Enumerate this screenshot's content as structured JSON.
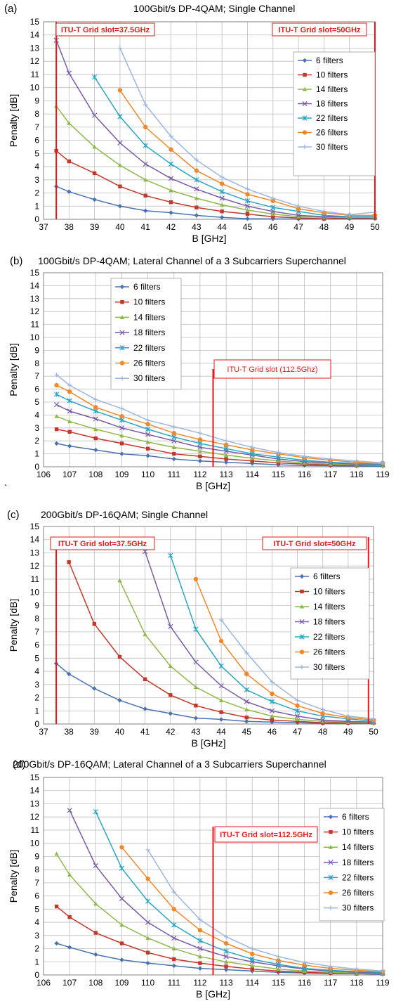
{
  "figure": {
    "stray_mark": "."
  },
  "styles": {
    "series_colors": [
      "#4a72b0",
      "#c0392b",
      "#8fb84a",
      "#7a5ba8",
      "#2aa6c4",
      "#f0882a",
      "#9bb6e0"
    ],
    "markers": [
      "diamond",
      "square",
      "triangle",
      "x",
      "star",
      "circle",
      "plus"
    ],
    "annotation_color": "#e31a1c"
  },
  "chart_data": [
    {
      "panel": "(a)",
      "title": "100Gbit/s DP-4QAM;  Single Channel",
      "type": "line",
      "xlabel": "B [GHz]",
      "ylabel": "Penalty [dB]",
      "xlim": [
        37,
        50
      ],
      "ylim": [
        0,
        15
      ],
      "xticks": [
        37,
        38,
        39,
        40,
        41,
        42,
        43,
        44,
        45,
        46,
        47,
        48,
        49,
        50
      ],
      "yticks": [
        0,
        1,
        2,
        3,
        4,
        5,
        6,
        7,
        8,
        9,
        10,
        11,
        12,
        13,
        14,
        15
      ],
      "grid": true,
      "legend_position": "top-right",
      "series": [
        {
          "name": "6 filters",
          "x": [
            37.5,
            38,
            39,
            40,
            41,
            42,
            43,
            44,
            45,
            46,
            47,
            48,
            49,
            50
          ],
          "y": [
            2.5,
            2.1,
            1.5,
            1.0,
            0.65,
            0.5,
            0.3,
            0.15,
            0.05,
            0.03,
            0.02,
            0.02,
            0.05,
            0.05
          ]
        },
        {
          "name": "10 filters",
          "x": [
            37.5,
            38,
            39,
            40,
            41,
            42,
            43,
            44,
            45,
            46,
            47,
            48,
            49,
            50
          ],
          "y": [
            5.2,
            4.4,
            3.5,
            2.5,
            1.8,
            1.3,
            0.9,
            0.6,
            0.4,
            0.2,
            0.1,
            0.05,
            0.1,
            0.1
          ]
        },
        {
          "name": "14 filters",
          "x": [
            37.5,
            38,
            39,
            40,
            41,
            42,
            43,
            44,
            45,
            46,
            47,
            48,
            49,
            50
          ],
          "y": [
            8.6,
            7.3,
            5.5,
            4.1,
            3.0,
            2.2,
            1.6,
            1.1,
            0.7,
            0.4,
            0.2,
            0.15,
            0.15,
            0.15
          ]
        },
        {
          "name": "18 filters",
          "x": [
            37.5,
            38,
            39,
            40,
            41,
            42,
            43,
            44,
            45,
            46,
            47,
            48,
            49,
            50
          ],
          "y": [
            13.6,
            11.1,
            7.9,
            5.8,
            4.2,
            3.1,
            2.3,
            1.6,
            1.0,
            0.6,
            0.3,
            0.2,
            0.2,
            0.2
          ]
        },
        {
          "name": "22 filters",
          "x": [
            39,
            40,
            41,
            42,
            43,
            44,
            45,
            46,
            47,
            48,
            49,
            50
          ],
          "y": [
            10.8,
            7.8,
            5.6,
            4.2,
            3.0,
            2.1,
            1.4,
            0.9,
            0.6,
            0.3,
            0.2,
            0.2
          ]
        },
        {
          "name": "26 filters",
          "x": [
            40,
            41,
            42,
            43,
            44,
            45,
            46,
            47,
            48,
            49,
            50
          ],
          "y": [
            9.8,
            7.0,
            5.3,
            3.7,
            2.7,
            1.9,
            1.4,
            0.8,
            0.5,
            0.3,
            0.3
          ]
        },
        {
          "name": "30 filters",
          "x": [
            40,
            41,
            42,
            43,
            44,
            45,
            46,
            47,
            48,
            49,
            50
          ],
          "y": [
            13.0,
            8.7,
            6.3,
            4.5,
            3.2,
            2.3,
            1.6,
            1.0,
            0.6,
            0.35,
            0.55
          ]
        }
      ],
      "markers": [
        {
          "label": "ITU-T Grid slot=37.5GHz",
          "x": 37.5
        },
        {
          "label": "ITU-T Grid slot=50GHz",
          "x": 50
        }
      ]
    },
    {
      "panel": "(b)",
      "title": "100Gbit/s DP-4QAM; Lateral Channel of a 3 Subcarriers  Superchannel",
      "type": "line",
      "xlabel": "B [GHz]",
      "ylabel": "Penalty [dB]",
      "xlim": [
        106,
        119
      ],
      "ylim": [
        0,
        15
      ],
      "xticks": [
        106,
        107,
        108,
        109,
        110,
        111,
        112,
        113,
        114,
        115,
        116,
        117,
        118,
        119
      ],
      "yticks": [
        0,
        1,
        2,
        3,
        4,
        5,
        6,
        7,
        8,
        9,
        10,
        11,
        12,
        13,
        14,
        15
      ],
      "grid": true,
      "legend_position": "top-left",
      "series": [
        {
          "name": "6 filters",
          "x": [
            106.5,
            107,
            108,
            109,
            110,
            111,
            112,
            113,
            114,
            115,
            116,
            117,
            118,
            119
          ],
          "y": [
            1.8,
            1.6,
            1.3,
            1.0,
            0.85,
            0.6,
            0.45,
            0.35,
            0.25,
            0.15,
            0.1,
            0.08,
            0.05,
            0.05
          ]
        },
        {
          "name": "10 filters",
          "x": [
            106.5,
            107,
            108,
            109,
            110,
            111,
            112,
            113,
            114,
            115,
            116,
            117,
            118,
            119
          ],
          "y": [
            2.9,
            2.7,
            2.2,
            1.8,
            1.4,
            1.0,
            0.8,
            0.6,
            0.45,
            0.3,
            0.2,
            0.15,
            0.1,
            0.1
          ]
        },
        {
          "name": "14 filters",
          "x": [
            106.5,
            107,
            108,
            109,
            110,
            111,
            112,
            113,
            114,
            115,
            116,
            117,
            118,
            119
          ],
          "y": [
            3.9,
            3.5,
            2.9,
            2.4,
            1.9,
            1.5,
            1.2,
            0.9,
            0.65,
            0.45,
            0.3,
            0.2,
            0.15,
            0.1
          ]
        },
        {
          "name": "18 filters",
          "x": [
            106.5,
            107,
            108,
            109,
            110,
            111,
            112,
            113,
            114,
            115,
            116,
            117,
            118,
            119
          ],
          "y": [
            4.8,
            4.3,
            3.7,
            3.0,
            2.5,
            2.0,
            1.5,
            1.2,
            0.9,
            0.6,
            0.4,
            0.3,
            0.2,
            0.15
          ]
        },
        {
          "name": "22 filters",
          "x": [
            106.5,
            107,
            108,
            109,
            110,
            111,
            112,
            113,
            114,
            115,
            116,
            117,
            118,
            119
          ],
          "y": [
            5.6,
            5.1,
            4.3,
            3.6,
            2.9,
            2.3,
            1.8,
            1.4,
            1.0,
            0.75,
            0.5,
            0.35,
            0.25,
            0.2
          ]
        },
        {
          "name": "26 filters",
          "x": [
            106.5,
            107,
            108,
            109,
            110,
            111,
            112,
            113,
            114,
            115,
            116,
            117,
            118,
            119
          ],
          "y": [
            6.3,
            5.8,
            4.6,
            3.9,
            3.3,
            2.6,
            2.1,
            1.7,
            1.3,
            1.0,
            0.7,
            0.5,
            0.35,
            0.3
          ]
        },
        {
          "name": "30 filters",
          "x": [
            106.5,
            107,
            108,
            109,
            110,
            111,
            112,
            113,
            114,
            115,
            116,
            117,
            118,
            119
          ],
          "y": [
            7.1,
            6.3,
            5.2,
            4.5,
            3.6,
            3.1,
            2.6,
            2.0,
            1.5,
            1.1,
            0.8,
            0.6,
            0.45,
            0.3
          ]
        }
      ],
      "markers": [
        {
          "label": "ITU-T Grid slot (112.5Ghz)",
          "x": 112.5
        }
      ]
    },
    {
      "panel": "(c)",
      "title": "200Gbit/s DP-16QAM; Single Channel",
      "type": "line",
      "xlabel": "B [GHz]",
      "ylabel": "Penalty [dB]",
      "xlim": [
        37,
        50
      ],
      "ylim": [
        0,
        15
      ],
      "xticks": [
        37,
        38,
        39,
        40,
        41,
        42,
        43,
        44,
        45,
        46,
        47,
        48,
        49,
        50
      ],
      "yticks": [
        0,
        1,
        2,
        3,
        4,
        5,
        6,
        7,
        8,
        9,
        10,
        11,
        12,
        13,
        14,
        15
      ],
      "grid": true,
      "legend_position": "top-right",
      "series": [
        {
          "name": "6 filters",
          "x": [
            37.5,
            38,
            39,
            40,
            41,
            42,
            43,
            44,
            45,
            46,
            47,
            48,
            49,
            50
          ],
          "y": [
            4.6,
            3.8,
            2.7,
            1.8,
            1.15,
            0.8,
            0.45,
            0.35,
            0.2,
            0.15,
            0.1,
            0.05,
            0.05,
            0.05
          ]
        },
        {
          "name": "10 filters",
          "x": [
            38,
            39,
            40,
            41,
            42,
            43,
            44,
            45,
            46,
            47,
            48,
            49,
            50
          ],
          "y": [
            12.3,
            7.6,
            5.1,
            3.4,
            2.2,
            1.4,
            0.9,
            0.5,
            0.3,
            0.2,
            0.1,
            0.1,
            0.1
          ]
        },
        {
          "name": "14 filters",
          "x": [
            40,
            41,
            42,
            43,
            44,
            45,
            46,
            47,
            48,
            49,
            50
          ],
          "y": [
            10.9,
            6.8,
            4.4,
            2.8,
            1.8,
            1.1,
            0.6,
            0.35,
            0.2,
            0.15,
            0.1
          ]
        },
        {
          "name": "18 filters",
          "x": [
            41,
            42,
            43,
            44,
            45,
            46,
            47,
            48,
            49,
            50
          ],
          "y": [
            13.1,
            7.4,
            4.7,
            2.9,
            1.7,
            1.0,
            0.6,
            0.3,
            0.2,
            0.15
          ]
        },
        {
          "name": "22 filters",
          "x": [
            42,
            43,
            44,
            45,
            46,
            47,
            48,
            49,
            50
          ],
          "y": [
            12.8,
            7.2,
            4.4,
            2.6,
            1.7,
            1.0,
            0.6,
            0.4,
            0.2
          ]
        },
        {
          "name": "26 filters",
          "x": [
            43,
            44,
            45,
            46,
            47,
            48,
            49,
            50
          ],
          "y": [
            11.0,
            6.3,
            3.8,
            2.3,
            1.4,
            0.8,
            0.5,
            0.3
          ]
        },
        {
          "name": "30 filters",
          "x": [
            44,
            45,
            46,
            47,
            48,
            49,
            50
          ],
          "y": [
            7.9,
            5.4,
            3.2,
            1.8,
            1.1,
            0.6,
            0.4
          ]
        }
      ],
      "markers": [
        {
          "label": "ITU-T Grid slot=37.5GHz",
          "x": 37.5
        },
        {
          "label": "ITU-T Grid slot=50GHz",
          "x": 49.8
        }
      ]
    },
    {
      "panel": "(d)",
      "title": "200Gbit/s DP-16QAM; Lateral Channel of a 3 Subcarriers  Superchannel",
      "type": "line",
      "xlabel": "B [GHz]",
      "ylabel": "Penalty [dB]",
      "xlim": [
        106,
        119
      ],
      "ylim": [
        0,
        15
      ],
      "xticks": [
        106,
        107,
        108,
        109,
        110,
        111,
        112,
        113,
        114,
        115,
        116,
        117,
        118,
        119
      ],
      "yticks": [
        0,
        1,
        2,
        3,
        4,
        5,
        6,
        7,
        8,
        9,
        10,
        11,
        12,
        13,
        14,
        15
      ],
      "grid": true,
      "legend_position": "top-right",
      "series": [
        {
          "name": "6 filters",
          "x": [
            106.5,
            107,
            108,
            109,
            110,
            111,
            112,
            113,
            114,
            115,
            116,
            117,
            118,
            119
          ],
          "y": [
            2.4,
            2.1,
            1.55,
            1.15,
            0.9,
            0.7,
            0.5,
            0.4,
            0.3,
            0.2,
            0.15,
            0.1,
            0.1,
            0.05
          ]
        },
        {
          "name": "10 filters",
          "x": [
            106.5,
            107,
            108,
            109,
            110,
            111,
            112,
            113,
            114,
            115,
            116,
            117,
            118,
            119
          ],
          "y": [
            5.2,
            4.4,
            3.2,
            2.4,
            1.7,
            1.2,
            0.9,
            0.65,
            0.45,
            0.3,
            0.2,
            0.15,
            0.1,
            0.1
          ]
        },
        {
          "name": "14 filters",
          "x": [
            106.5,
            107,
            108,
            109,
            110,
            111,
            112,
            113,
            114,
            115,
            116,
            117,
            118,
            119
          ],
          "y": [
            9.2,
            7.6,
            5.4,
            3.8,
            2.8,
            2.0,
            1.4,
            1.0,
            0.7,
            0.45,
            0.3,
            0.2,
            0.15,
            0.1
          ]
        },
        {
          "name": "18 filters",
          "x": [
            107,
            108,
            109,
            110,
            111,
            112,
            113,
            114,
            115,
            116,
            117,
            118,
            119
          ],
          "y": [
            12.5,
            8.3,
            5.8,
            4.0,
            2.8,
            2.0,
            1.4,
            1.0,
            0.7,
            0.45,
            0.3,
            0.2,
            0.15
          ]
        },
        {
          "name": "22 filters",
          "x": [
            108,
            109,
            110,
            111,
            112,
            113,
            114,
            115,
            116,
            117,
            118,
            119
          ],
          "y": [
            12.4,
            8.1,
            5.6,
            3.8,
            2.6,
            1.8,
            1.2,
            0.8,
            0.5,
            0.35,
            0.25,
            0.2
          ]
        },
        {
          "name": "26 filters",
          "x": [
            109,
            110,
            111,
            112,
            113,
            114,
            115,
            116,
            117,
            118,
            119
          ],
          "y": [
            9.7,
            7.3,
            5.0,
            3.4,
            2.4,
            1.6,
            1.1,
            0.75,
            0.5,
            0.35,
            0.25
          ]
        },
        {
          "name": "30 filters",
          "x": [
            110,
            111,
            112,
            113,
            114,
            115,
            116,
            117,
            118,
            119
          ],
          "y": [
            9.5,
            6.3,
            4.2,
            2.9,
            2.0,
            1.4,
            0.95,
            0.65,
            0.45,
            0.3
          ]
        }
      ],
      "markers": [
        {
          "label": "ITU-T Grid slot=112.5GHz",
          "x": 112.5
        }
      ]
    }
  ]
}
